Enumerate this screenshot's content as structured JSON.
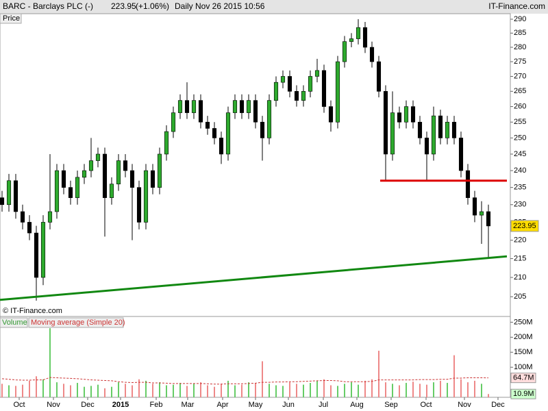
{
  "header": {
    "symbol": "BARC - Barclays PLC (-)",
    "change": "(+1.06%)",
    "period": "Daily",
    "datetime": "Nov 26 2015 10:56",
    "site": "IT-Finance.com"
  },
  "chart_data": {
    "type": "candlestick",
    "price_label": "Price",
    "copyright": "© IT-Finance.com",
    "last": 223.95,
    "log_scale": true,
    "up_color": "#2eaa2e",
    "down_color": "#000000",
    "xlim": [
      -0.3,
      74.2
    ],
    "xticks": [
      {
        "value": 2.5,
        "label": "Oct"
      },
      {
        "value": 7.5,
        "label": "Nov"
      },
      {
        "value": 12.5,
        "label": "Dec"
      },
      {
        "value": 17.3,
        "label": "2015"
      },
      {
        "value": 22.5,
        "label": "Feb"
      },
      {
        "value": 27.1,
        "label": "Mar"
      },
      {
        "value": 32.2,
        "label": "Apr"
      },
      {
        "value": 37,
        "label": "May"
      },
      {
        "value": 41.8,
        "label": "Jun"
      },
      {
        "value": 46.9,
        "label": "Jul"
      },
      {
        "value": 51.8,
        "label": "Aug"
      },
      {
        "value": 56.8,
        "label": "Sep"
      },
      {
        "value": 61.9,
        "label": "Oct"
      },
      {
        "value": 67.5,
        "label": "Nov"
      },
      {
        "value": 72.4,
        "label": "Dec"
      }
    ],
    "ylim": [
      200,
      292
    ],
    "yticks": [
      205,
      210,
      215,
      220,
      225,
      230,
      235,
      240,
      245,
      250,
      255,
      260,
      265,
      270,
      275,
      280,
      285,
      290
    ],
    "ohlc": [
      [
        232,
        234,
        228,
        230
      ],
      [
        230,
        239,
        228,
        237
      ],
      [
        237,
        239,
        226,
        228
      ],
      [
        228,
        230,
        223,
        225
      ],
      [
        225,
        227,
        220,
        222
      ],
      [
        222,
        224,
        204,
        210
      ],
      [
        210,
        227,
        208,
        225
      ],
      [
        225,
        245,
        223,
        228
      ],
      [
        228,
        242,
        226,
        240
      ],
      [
        240,
        242,
        233,
        235
      ],
      [
        235,
        237,
        230,
        232
      ],
      [
        232,
        240,
        230,
        238
      ],
      [
        238,
        242,
        236,
        240
      ],
      [
        240,
        250,
        238,
        243
      ],
      [
        243,
        247,
        241,
        245
      ],
      [
        245,
        247,
        221,
        232
      ],
      [
        232,
        238,
        230,
        236
      ],
      [
        236,
        245,
        234,
        243
      ],
      [
        243,
        245,
        238,
        240
      ],
      [
        240,
        242,
        220,
        235
      ],
      [
        235,
        237,
        223,
        225
      ],
      [
        225,
        242,
        223,
        240
      ],
      [
        240,
        242,
        233,
        235
      ],
      [
        235,
        247,
        233,
        245
      ],
      [
        245,
        254,
        243,
        252
      ],
      [
        252,
        260,
        250,
        258
      ],
      [
        258,
        264,
        256,
        262
      ],
      [
        262,
        268,
        256,
        258
      ],
      [
        258,
        264,
        256,
        262
      ],
      [
        262,
        264,
        253,
        255
      ],
      [
        255,
        257,
        251,
        253
      ],
      [
        253,
        255,
        248,
        250
      ],
      [
        250,
        252,
        242,
        245
      ],
      [
        245,
        260,
        243,
        258
      ],
      [
        258,
        264,
        256,
        262
      ],
      [
        262,
        264,
        256,
        258
      ],
      [
        258,
        264,
        256,
        262
      ],
      [
        262,
        264,
        253,
        255
      ],
      [
        255,
        257,
        243,
        250
      ],
      [
        250,
        264,
        248,
        262
      ],
      [
        262,
        270,
        260,
        268
      ],
      [
        268,
        272,
        266,
        270
      ],
      [
        270,
        272,
        263,
        265
      ],
      [
        265,
        267,
        260,
        262
      ],
      [
        262,
        267,
        260,
        265
      ],
      [
        265,
        272,
        263,
        270
      ],
      [
        270,
        276,
        268,
        272
      ],
      [
        272,
        274,
        258,
        260
      ],
      [
        260,
        262,
        252,
        255
      ],
      [
        255,
        277,
        253,
        275
      ],
      [
        275,
        284,
        273,
        282
      ],
      [
        282,
        285,
        280,
        283
      ],
      [
        283,
        290,
        281,
        287
      ],
      [
        287,
        289,
        278,
        280
      ],
      [
        280,
        282,
        273,
        275
      ],
      [
        275,
        277,
        263,
        265
      ],
      [
        265,
        267,
        237,
        245
      ],
      [
        245,
        265,
        243,
        258
      ],
      [
        258,
        260,
        253,
        255
      ],
      [
        255,
        262,
        253,
        260
      ],
      [
        260,
        262,
        253,
        255
      ],
      [
        255,
        257,
        248,
        250
      ],
      [
        250,
        252,
        237,
        245
      ],
      [
        245,
        260,
        243,
        257
      ],
      [
        257,
        259,
        248,
        250
      ],
      [
        250,
        257,
        248,
        255
      ],
      [
        255,
        257,
        248,
        250
      ],
      [
        250,
        252,
        238,
        240
      ],
      [
        240,
        242,
        230,
        232
      ],
      [
        232,
        234,
        225,
        227
      ],
      [
        227,
        231,
        219,
        228
      ],
      [
        228,
        230,
        215,
        223.95
      ]
    ],
    "lines": [
      {
        "color": "#dd0000",
        "points": [
          [
            55.2,
            237
          ],
          [
            73.7,
            237
          ]
        ]
      },
      {
        "color": "#118811",
        "points": [
          [
            -0.3,
            204.2
          ],
          [
            73.7,
            215.6
          ]
        ]
      }
    ],
    "volume": {
      "name": "Volume",
      "ma_name": "Moving average (Simple 20)",
      "up_color": "#66cc66",
      "down_color": "#ee8888",
      "ma_color": "#cc3333",
      "ylim": [
        0,
        260
      ],
      "yticks": [
        {
          "value": 100,
          "label": "100M"
        },
        {
          "value": 150,
          "label": "150M"
        },
        {
          "value": 200,
          "label": "200M"
        },
        {
          "value": 250,
          "label": "250M"
        }
      ],
      "values": [
        45,
        40,
        38,
        42,
        55,
        70,
        60,
        230,
        50,
        45,
        40,
        48,
        35,
        38,
        42,
        30,
        35,
        50,
        45,
        40,
        60,
        55,
        45,
        50,
        40,
        42,
        48,
        38,
        45,
        50,
        40,
        35,
        45,
        55,
        40,
        42,
        50,
        48,
        120,
        45,
        40,
        38,
        50,
        45,
        42,
        48,
        55,
        60,
        40,
        38,
        45,
        50,
        42,
        55,
        60,
        155,
        50,
        45,
        40,
        48,
        52,
        45,
        42,
        50,
        55,
        48,
        140,
        60,
        50,
        55,
        45,
        10.9
      ],
      "ma": [
        62,
        60,
        58,
        57,
        57,
        58,
        58,
        66,
        65,
        64,
        63,
        62,
        60,
        58,
        57,
        56,
        55,
        52,
        50,
        49,
        50,
        50,
        48,
        48,
        47,
        46,
        46,
        46,
        46,
        46,
        45,
        44,
        44,
        45,
        45,
        45,
        46,
        47,
        50,
        50,
        51,
        51,
        52,
        52,
        53,
        54,
        55,
        56,
        56,
        55,
        52,
        52,
        52,
        52,
        53,
        58,
        58,
        58,
        58,
        58,
        58,
        59,
        59,
        59,
        60,
        60,
        64,
        64,
        65,
        65,
        65,
        64.7
      ],
      "markers": [
        {
          "value": 64.7,
          "label": "64.7M"
        },
        {
          "value": 10.9,
          "label": "10.9M"
        }
      ]
    }
  }
}
